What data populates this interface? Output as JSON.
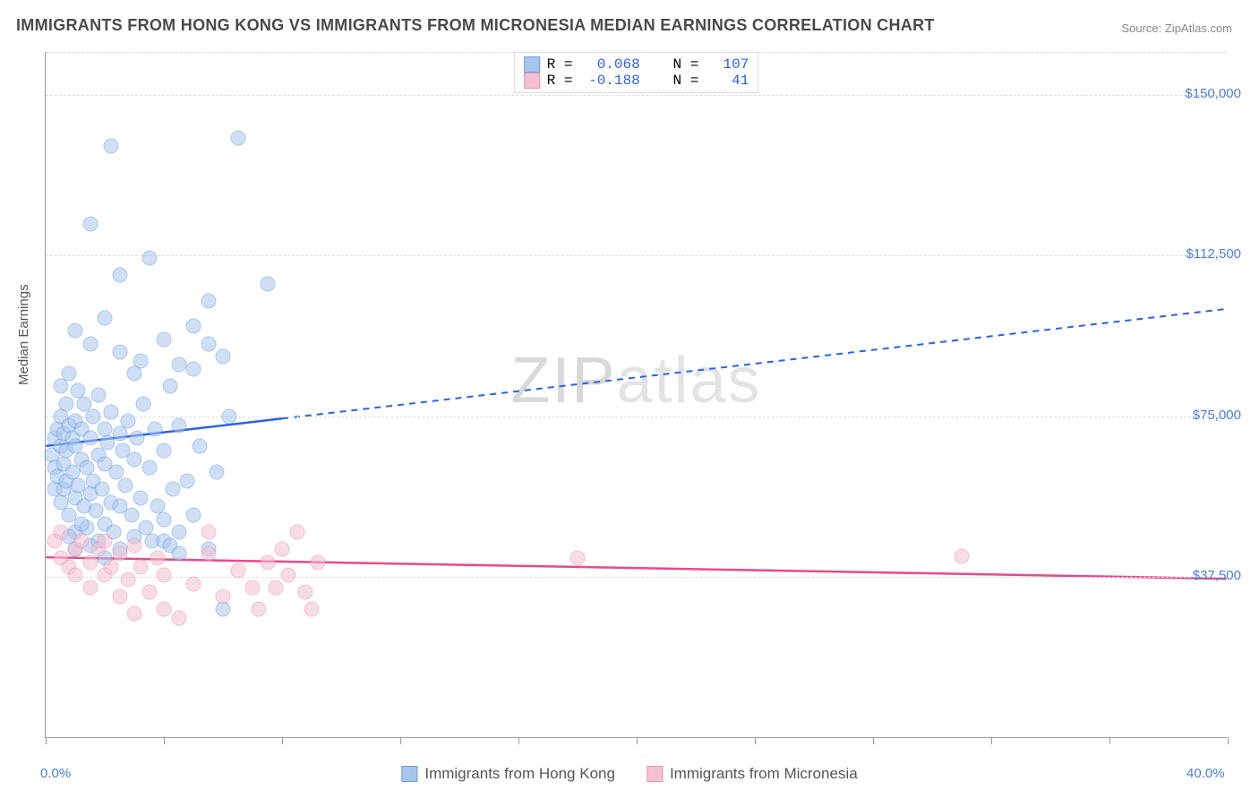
{
  "title": "IMMIGRANTS FROM HONG KONG VS IMMIGRANTS FROM MICRONESIA MEDIAN EARNINGS CORRELATION CHART",
  "source": "Source: ZipAtlas.com",
  "watermark": "ZIPatlas",
  "ylabel": "Median Earnings",
  "chart": {
    "type": "scatter",
    "xlim": [
      0,
      40
    ],
    "ylim": [
      0,
      160000
    ],
    "x_tick_positions": [
      0,
      4,
      8,
      12,
      16,
      20,
      24,
      28,
      32,
      36,
      40
    ],
    "x_tick_labels": {
      "0": "0.0%",
      "40": "40.0%"
    },
    "y_gridlines": [
      37500,
      75000,
      112500,
      150000,
      160000
    ],
    "y_tick_labels": {
      "37500": "$37,500",
      "75000": "$75,000",
      "112500": "$112,500",
      "150000": "$150,000"
    },
    "grid_color": "#dddddd",
    "axis_color": "#999999",
    "background_color": "#ffffff",
    "label_color": "#4a7fd8",
    "point_radius": 8.5,
    "point_opacity": 0.55
  },
  "series": [
    {
      "name": "Immigrants from Hong Kong",
      "fill_color": "#a8c5ed",
      "stroke_color": "#6a9de0",
      "line_color": "#2a62e8",
      "R": "0.068",
      "N": "107",
      "trend": {
        "x1": 0,
        "y1": 68000,
        "x2": 40,
        "y2": 100000,
        "solid_until_x": 8
      },
      "points": [
        [
          0.2,
          66000
        ],
        [
          0.3,
          63000
        ],
        [
          0.3,
          70000
        ],
        [
          0.3,
          58000
        ],
        [
          0.4,
          72000
        ],
        [
          0.4,
          61000
        ],
        [
          0.5,
          68000
        ],
        [
          0.5,
          75000
        ],
        [
          0.5,
          55000
        ],
        [
          0.5,
          82000
        ],
        [
          0.6,
          64000
        ],
        [
          0.6,
          71000
        ],
        [
          0.6,
          58000
        ],
        [
          0.7,
          78000
        ],
        [
          0.7,
          67000
        ],
        [
          0.7,
          60000
        ],
        [
          0.8,
          73000
        ],
        [
          0.8,
          52000
        ],
        [
          0.8,
          85000
        ],
        [
          0.9,
          62000
        ],
        [
          0.9,
          70000
        ],
        [
          1.0,
          56000
        ],
        [
          1.0,
          74000
        ],
        [
          1.0,
          48000
        ],
        [
          1.0,
          68000
        ],
        [
          1.1,
          81000
        ],
        [
          1.1,
          59000
        ],
        [
          1.2,
          65000
        ],
        [
          1.2,
          72000
        ],
        [
          1.3,
          54000
        ],
        [
          1.3,
          78000
        ],
        [
          1.4,
          63000
        ],
        [
          1.4,
          49000
        ],
        [
          1.5,
          70000
        ],
        [
          1.5,
          57000
        ],
        [
          1.5,
          92000
        ],
        [
          1.6,
          60000
        ],
        [
          1.6,
          75000
        ],
        [
          1.7,
          53000
        ],
        [
          1.8,
          66000
        ],
        [
          1.8,
          80000
        ],
        [
          1.9,
          58000
        ],
        [
          2.0,
          72000
        ],
        [
          2.0,
          50000
        ],
        [
          2.0,
          64000
        ],
        [
          2.1,
          69000
        ],
        [
          2.2,
          55000
        ],
        [
          2.2,
          76000
        ],
        [
          2.3,
          48000
        ],
        [
          2.4,
          62000
        ],
        [
          2.5,
          71000
        ],
        [
          2.5,
          54000
        ],
        [
          2.6,
          67000
        ],
        [
          2.7,
          59000
        ],
        [
          2.8,
          74000
        ],
        [
          2.9,
          52000
        ],
        [
          3.0,
          65000
        ],
        [
          3.0,
          47000
        ],
        [
          3.1,
          70000
        ],
        [
          3.2,
          56000
        ],
        [
          3.3,
          78000
        ],
        [
          3.4,
          49000
        ],
        [
          3.5,
          63000
        ],
        [
          3.6,
          46000
        ],
        [
          3.7,
          72000
        ],
        [
          3.8,
          54000
        ],
        [
          4.0,
          67000
        ],
        [
          4.0,
          51000
        ],
        [
          4.2,
          82000
        ],
        [
          4.3,
          58000
        ],
        [
          4.5,
          48000
        ],
        [
          4.5,
          73000
        ],
        [
          4.8,
          60000
        ],
        [
          5.0,
          86000
        ],
        [
          5.0,
          52000
        ],
        [
          5.2,
          68000
        ],
        [
          5.5,
          44000
        ],
        [
          5.5,
          92000
        ],
        [
          5.8,
          62000
        ],
        [
          6.0,
          30000
        ],
        [
          6.2,
          75000
        ],
        [
          1.0,
          95000
        ],
        [
          1.5,
          120000
        ],
        [
          2.0,
          98000
        ],
        [
          2.5,
          108000
        ],
        [
          3.2,
          88000
        ],
        [
          3.5,
          112000
        ],
        [
          4.0,
          93000
        ],
        [
          4.5,
          87000
        ],
        [
          5.0,
          96000
        ],
        [
          5.5,
          102000
        ],
        [
          6.0,
          89000
        ],
        [
          6.5,
          140000
        ],
        [
          7.5,
          106000
        ],
        [
          2.2,
          138000
        ],
        [
          4.0,
          46000
        ],
        [
          4.2,
          45000
        ],
        [
          4.5,
          43000
        ],
        [
          3.0,
          85000
        ],
        [
          2.5,
          90000
        ],
        [
          0.8,
          47000
        ],
        [
          1.0,
          44000
        ],
        [
          1.2,
          50000
        ],
        [
          1.5,
          45000
        ],
        [
          1.8,
          46000
        ],
        [
          2.0,
          42000
        ],
        [
          2.5,
          44000
        ]
      ]
    },
    {
      "name": "Immigrants from Micronesia",
      "fill_color": "#f4c1d0",
      "stroke_color": "#e593b0",
      "line_color": "#e84a8a",
      "R": "-0.188",
      "N": "41",
      "trend": {
        "x1": 0,
        "y1": 42000,
        "x2": 40,
        "y2": 37000,
        "solid_until_x": 40
      },
      "points": [
        [
          0.3,
          46000
        ],
        [
          0.5,
          42000
        ],
        [
          0.5,
          48000
        ],
        [
          0.8,
          40000
        ],
        [
          1.0,
          44000
        ],
        [
          1.0,
          38000
        ],
        [
          1.2,
          46000
        ],
        [
          1.5,
          41000
        ],
        [
          1.5,
          35000
        ],
        [
          1.8,
          44000
        ],
        [
          2.0,
          38000
        ],
        [
          2.0,
          46000
        ],
        [
          2.2,
          40000
        ],
        [
          2.5,
          43000
        ],
        [
          2.5,
          33000
        ],
        [
          2.8,
          37000
        ],
        [
          3.0,
          45000
        ],
        [
          3.0,
          29000
        ],
        [
          3.2,
          40000
        ],
        [
          3.5,
          34000
        ],
        [
          3.8,
          42000
        ],
        [
          4.0,
          30000
        ],
        [
          4.0,
          38000
        ],
        [
          4.5,
          28000
        ],
        [
          5.0,
          36000
        ],
        [
          5.5,
          43000
        ],
        [
          6.0,
          33000
        ],
        [
          6.5,
          39000
        ],
        [
          7.0,
          35000
        ],
        [
          7.2,
          30000
        ],
        [
          7.5,
          41000
        ],
        [
          7.8,
          35000
        ],
        [
          8.0,
          44000
        ],
        [
          8.2,
          38000
        ],
        [
          8.5,
          48000
        ],
        [
          8.8,
          34000
        ],
        [
          9.0,
          30000
        ],
        [
          9.2,
          41000
        ],
        [
          18.0,
          42000
        ],
        [
          31.0,
          42500
        ],
        [
          5.5,
          48000
        ]
      ]
    }
  ],
  "legend_top_labels": {
    "R": "R =",
    "N": "N ="
  },
  "legend_bottom": [
    "Immigrants from Hong Kong",
    "Immigrants from Micronesia"
  ]
}
